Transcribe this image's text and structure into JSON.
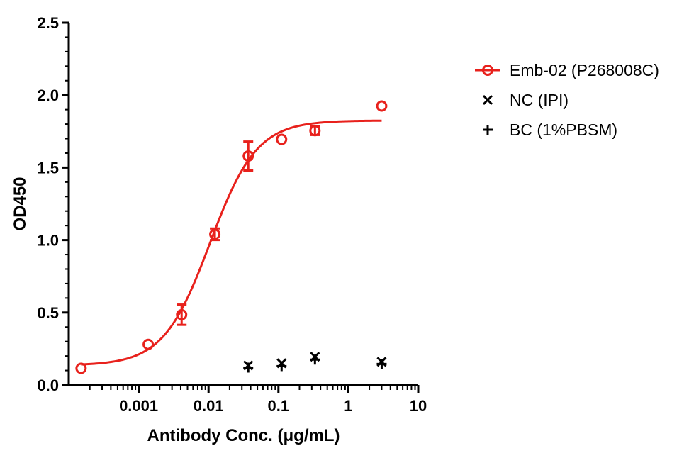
{
  "chart_data": {
    "type": "scatter",
    "xlabel": "Antibody Conc. (μg/mL)",
    "ylabel": "OD450",
    "x_scale": "log",
    "xlim": [
      0.0001,
      10
    ],
    "ylim": [
      0,
      2.5
    ],
    "x_ticks": [
      {
        "value": 0.001,
        "label": "0.001"
      },
      {
        "value": 0.01,
        "label": "0.01"
      },
      {
        "value": 0.1,
        "label": "0.1"
      },
      {
        "value": 1,
        "label": "1"
      },
      {
        "value": 10,
        "label": "10"
      }
    ],
    "y_ticks": [
      {
        "value": 0,
        "label": "0.0"
      },
      {
        "value": 0.5,
        "label": "0.5"
      },
      {
        "value": 1.0,
        "label": "1.0"
      },
      {
        "value": 1.5,
        "label": "1.5"
      },
      {
        "value": 2.0,
        "label": "2.0"
      },
      {
        "value": 2.5,
        "label": "2.5"
      }
    ],
    "legend_position": "right",
    "series": [
      {
        "name": "Emb-02 (P268008C)",
        "color": "#e8211c",
        "marker": "circle",
        "fit": "sigmoidal",
        "x": [
          0.00015,
          0.00137,
          0.00412,
          0.0123,
          0.037,
          0.111,
          0.333,
          3.0
        ],
        "y": [
          0.115,
          0.28,
          0.485,
          1.04,
          1.58,
          1.695,
          1.755,
          1.925
        ],
        "error": [
          0,
          0,
          0.07,
          0.04,
          0.1,
          0,
          0.03,
          0
        ],
        "fit_params": {
          "bottom": 0.135,
          "top": 1.825,
          "ec50": 0.0105,
          "hill": 1.3
        }
      },
      {
        "name": "NC (IPI)",
        "color": "#000000",
        "marker": "x",
        "x": [
          0.037,
          0.111,
          0.333,
          3.0
        ],
        "y": [
          0.135,
          0.15,
          0.195,
          0.16
        ]
      },
      {
        "name": "BC (1%PBSM)",
        "color": "#000000",
        "marker": "plus",
        "x": [
          0.037,
          0.111,
          0.333,
          3.0
        ],
        "y": [
          0.12,
          0.13,
          0.175,
          0.145
        ]
      }
    ]
  }
}
